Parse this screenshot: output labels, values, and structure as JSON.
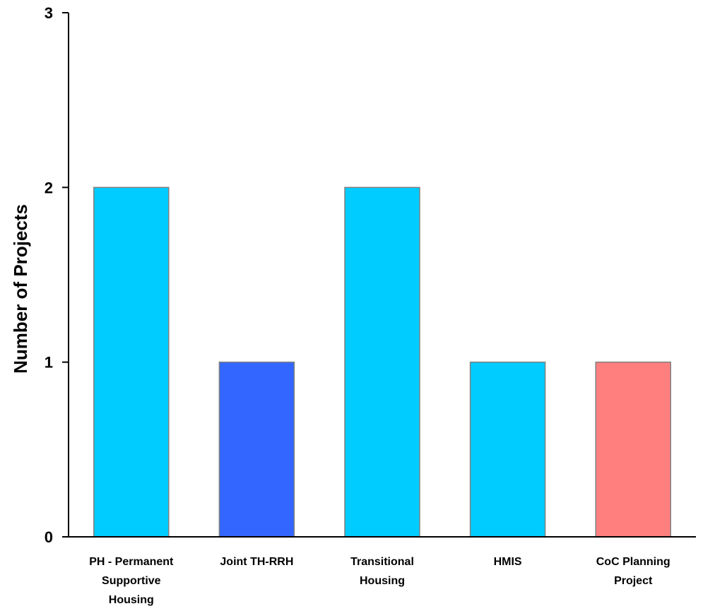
{
  "chart_data": {
    "type": "bar",
    "title": "",
    "xlabel": "",
    "ylabel": "Number of Projects",
    "categories": [
      [
        "PH - Permanent",
        "Supportive",
        "Housing"
      ],
      [
        "Joint TH-RRH"
      ],
      [
        "Transitional",
        "Housing"
      ],
      [
        "HMIS"
      ],
      [
        "CoC Planning",
        "Project"
      ]
    ],
    "values": [
      2,
      1,
      2,
      1,
      1
    ],
    "colors": [
      "#00CCFF",
      "#3366FF",
      "#00CCFF",
      "#00CCFF",
      "#FF7F7F"
    ],
    "bar_outline": "#808080",
    "ylim": [
      0,
      3
    ],
    "yticks": [
      0,
      1,
      2,
      3
    ],
    "grid": false,
    "legend": "none"
  }
}
